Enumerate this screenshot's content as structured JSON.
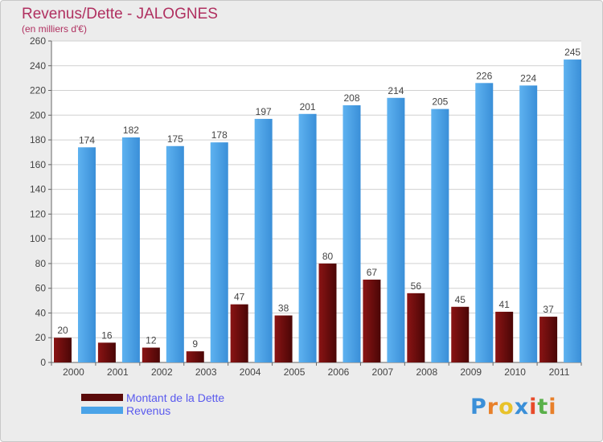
{
  "title": "Revenus/Dette - JALOGNES",
  "subtitle": "(en milliers d'€)",
  "chart_data": {
    "type": "bar",
    "categories": [
      "2000",
      "2001",
      "2002",
      "2003",
      "2004",
      "2005",
      "2006",
      "2007",
      "2008",
      "2009",
      "2010",
      "2011"
    ],
    "series": [
      {
        "name": "Montant de la Dette",
        "color": "#7a0f0f",
        "values": [
          20,
          16,
          12,
          9,
          47,
          38,
          80,
          67,
          56,
          45,
          41,
          37
        ]
      },
      {
        "name": "Revenus",
        "color": "#4aa3e8",
        "values": [
          174,
          182,
          175,
          178,
          197,
          201,
          208,
          214,
          205,
          226,
          224,
          245
        ]
      }
    ],
    "ylim": [
      0,
      260
    ],
    "yticks": [
      0,
      20,
      40,
      60,
      80,
      100,
      120,
      140,
      160,
      180,
      200,
      220,
      240,
      260
    ],
    "grid": true,
    "legend_position": "bottom-left"
  },
  "legend": [
    {
      "label": "Montant de la Dette",
      "color": "#7a0f0f"
    },
    {
      "label": "Revenus",
      "color": "#4aa3e8"
    }
  ],
  "logo": {
    "letters": [
      "P",
      "r",
      "o",
      "x",
      "i",
      "t",
      "i"
    ],
    "colors": [
      "#3a8fd8",
      "#e8802a",
      "#e8c22a",
      "#3a8fd8",
      "#e84a2a",
      "#5ab04a",
      "#e8802a"
    ]
  }
}
